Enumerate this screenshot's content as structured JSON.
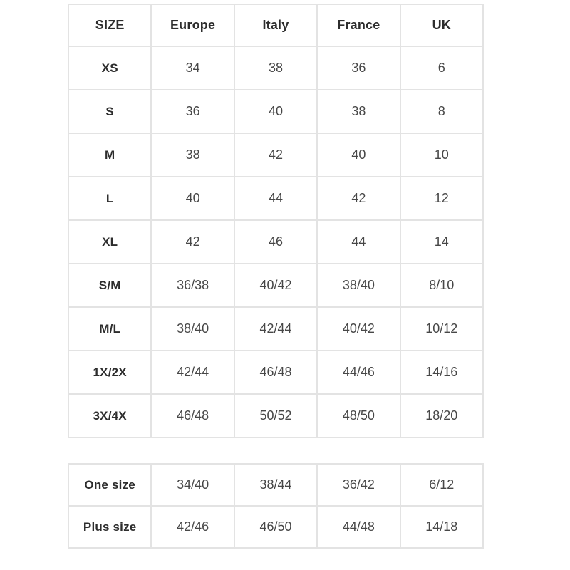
{
  "chart_data": {
    "type": "table",
    "columns": [
      "SIZE",
      "Europe",
      "Italy",
      "France",
      "UK"
    ],
    "rows": [
      [
        "XS",
        "34",
        "38",
        "36",
        "6"
      ],
      [
        "S",
        "36",
        "40",
        "38",
        "8"
      ],
      [
        "M",
        "38",
        "42",
        "40",
        "10"
      ],
      [
        "L",
        "40",
        "44",
        "42",
        "12"
      ],
      [
        "XL",
        "42",
        "46",
        "44",
        "14"
      ],
      [
        "S/M",
        "36/38",
        "40/42",
        "38/40",
        "8/10"
      ],
      [
        "M/L",
        "38/40",
        "42/44",
        "40/42",
        "10/12"
      ],
      [
        "1X/2X",
        "42/44",
        "46/48",
        "44/46",
        "14/16"
      ],
      [
        "3X/4X",
        "46/48",
        "50/52",
        "48/50",
        "18/20"
      ]
    ],
    "secondary_rows": [
      [
        "One size",
        "34/40",
        "38/44",
        "36/42",
        "6/12"
      ],
      [
        "Plus size",
        "42/46",
        "46/50",
        "44/48",
        "14/18"
      ]
    ],
    "layout": {
      "grid": "on",
      "two_tables": true
    }
  },
  "colors": {
    "border-color": "#e3e3e3",
    "label-color": "#2d2d2d",
    "value-color": "#474747"
  }
}
